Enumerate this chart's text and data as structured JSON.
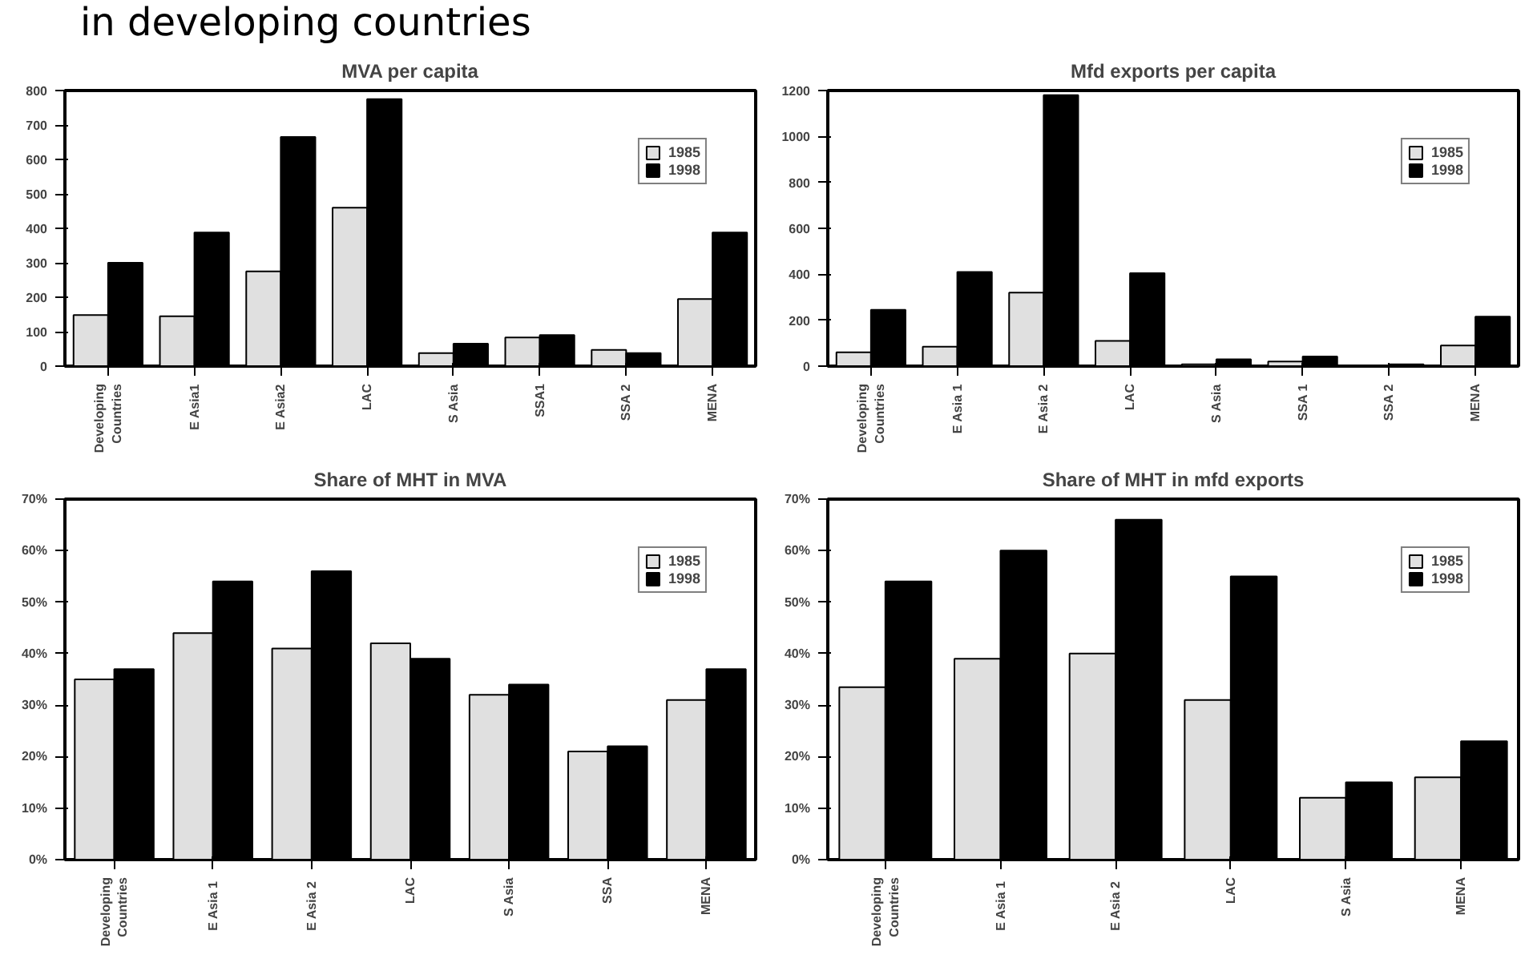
{
  "chart_data": [
    {
      "type": "bar",
      "title": "MVA per capita",
      "annotations": [
        "in developing countries"
      ],
      "categories": [
        "Developing\nCountries",
        "E Asia1",
        "E Asia2",
        "LAC",
        "S Asia",
        "SSA1",
        "SSA 2",
        "MENA"
      ],
      "series": [
        {
          "name": "1985",
          "color": "#e0e0e0",
          "values": [
            148,
            145,
            275,
            460,
            38,
            83,
            47,
            195
          ]
        },
        {
          "name": "1998",
          "color": "#000000",
          "values": [
            300,
            388,
            665,
            775,
            65,
            90,
            38,
            388
          ]
        }
      ],
      "ylim": [
        0,
        800
      ],
      "yticks": [
        0,
        100,
        200,
        300,
        400,
        500,
        600,
        700,
        800
      ],
      "grid": false,
      "legend": "top right"
    },
    {
      "type": "bar",
      "title": "Mfd exports per capita",
      "categories": [
        "Developing\nCountries",
        "E Asia 1",
        "E Asia 2",
        "LAC",
        "S Asia",
        "SSA 1",
        "SSA 2",
        "MENA"
      ],
      "series": [
        {
          "name": "1985",
          "color": "#e0e0e0",
          "values": [
            60,
            85,
            320,
            110,
            8,
            20,
            3,
            90
          ]
        },
        {
          "name": "1998",
          "color": "#000000",
          "values": [
            245,
            410,
            1180,
            405,
            30,
            42,
            8,
            215
          ]
        }
      ],
      "ylim": [
        0,
        1200
      ],
      "yticks": [
        0,
        200,
        400,
        600,
        800,
        1000,
        1200
      ],
      "grid": false,
      "legend": "top right"
    },
    {
      "type": "bar",
      "title": "Share of MHT in MVA",
      "categories": [
        "Developing\nCountries",
        "E Asia  1",
        "E Asia  2",
        "LAC",
        "S Asia",
        "SSA",
        "MENA"
      ],
      "series": [
        {
          "name": "1985",
          "color": "#e0e0e0",
          "values": [
            35,
            44,
            41,
            42,
            32,
            21,
            31
          ]
        },
        {
          "name": "1998",
          "color": "#000000",
          "values": [
            37,
            54,
            56,
            39,
            34,
            22,
            37
          ]
        }
      ],
      "ylim": [
        0,
        70
      ],
      "yticks": [
        {
          "value": 0,
          "label": "0%"
        },
        {
          "value": 10,
          "label": "10%"
        },
        {
          "value": 20,
          "label": "20%"
        },
        {
          "value": 30,
          "label": "30%"
        },
        {
          "value": 40,
          "label": "40%"
        },
        {
          "value": 50,
          "label": "50%"
        },
        {
          "value": 60,
          "label": "60%"
        },
        {
          "value": 70,
          "label": "70%"
        }
      ],
      "grid": false,
      "legend": "top right"
    },
    {
      "type": "bar",
      "title": "Share of MHT in mfd exports",
      "categories": [
        "Developing\nCountries",
        "E Asia  1",
        "E Asia  2",
        "LAC",
        "S Asia",
        "MENA"
      ],
      "series": [
        {
          "name": "1985",
          "color": "#e0e0e0",
          "values": [
            33.5,
            39,
            40,
            31,
            12,
            16
          ]
        },
        {
          "name": "1998",
          "color": "#000000",
          "values": [
            54,
            60,
            66,
            55,
            15,
            23
          ]
        }
      ],
      "ylim": [
        0,
        70
      ],
      "yticks": [
        {
          "value": 0,
          "label": "0%"
        },
        {
          "value": 10,
          "label": "10%"
        },
        {
          "value": 20,
          "label": "20%"
        },
        {
          "value": 30,
          "label": "30%"
        },
        {
          "value": 40,
          "label": "40%"
        },
        {
          "value": 50,
          "label": "50%"
        },
        {
          "value": 60,
          "label": "60%"
        },
        {
          "value": 70,
          "label": "70%"
        }
      ],
      "grid": false,
      "legend": "top right"
    }
  ]
}
